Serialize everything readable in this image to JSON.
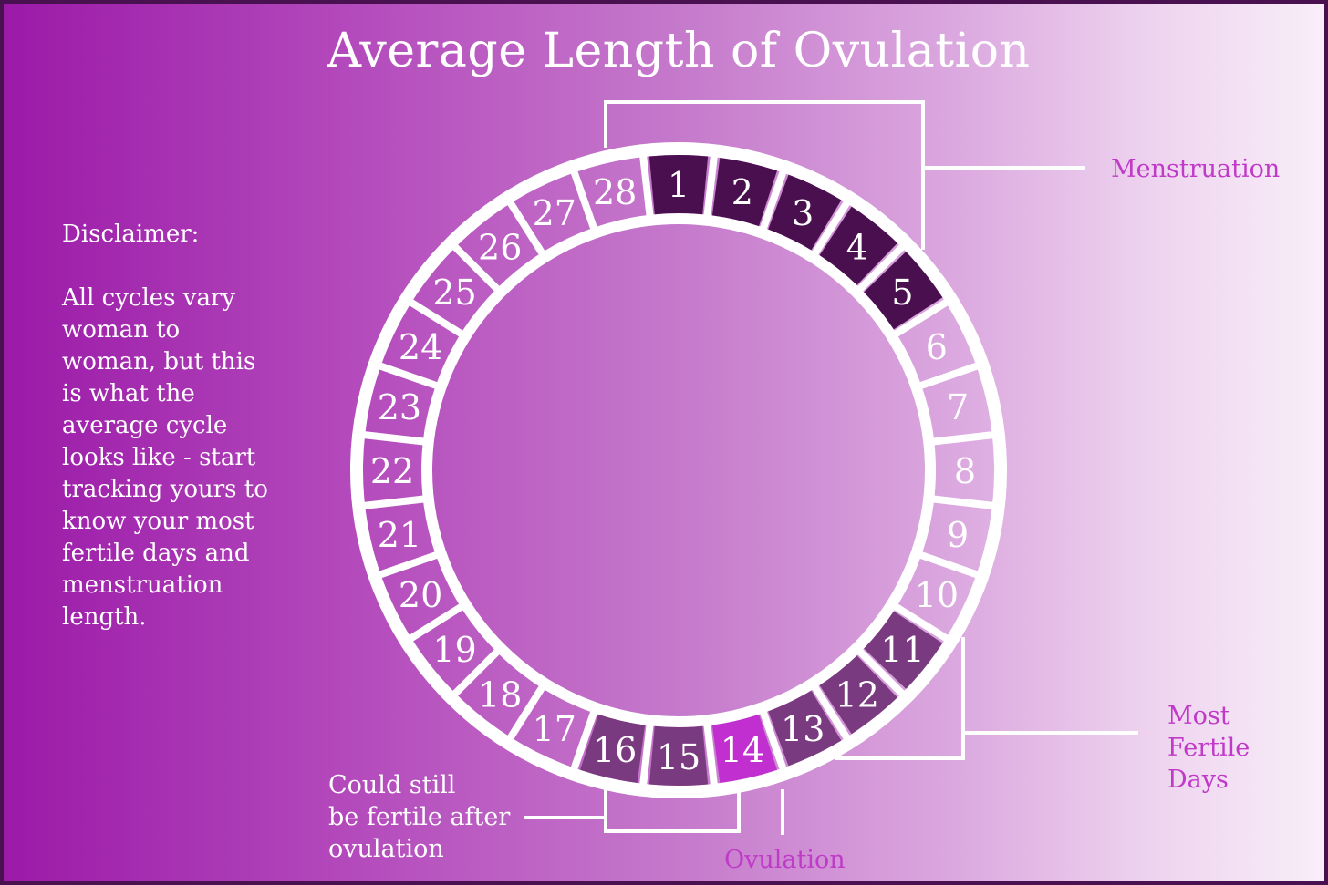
{
  "title": "Average Length of Ovulation",
  "disclaimer": {
    "heading": "Disclaimer:",
    "lines": [
      "All cycles vary",
      "woman to",
      "woman, but this",
      "is what the",
      "average cycle",
      "looks like - start",
      "tracking yours to",
      "know your most",
      "fertile days and",
      "menstruation",
      "length."
    ]
  },
  "cycle": {
    "days": [
      "1",
      "2",
      "3",
      "4",
      "5",
      "6",
      "7",
      "8",
      "9",
      "10",
      "11",
      "12",
      "13",
      "14",
      "15",
      "16",
      "17",
      "18",
      "19",
      "20",
      "21",
      "22",
      "23",
      "24",
      "25",
      "26",
      "27",
      "28"
    ],
    "menstruation_days": [
      1,
      2,
      3,
      4,
      5
    ],
    "fertile_days": [
      11,
      12,
      13,
      15,
      16
    ],
    "ovulation_day": 14
  },
  "labels": {
    "menstruation": "Menstruation",
    "most_fertile": [
      "Most",
      "Fertile",
      "Days"
    ],
    "ovulation": "Ovulation",
    "post_ovulation": [
      "Could still",
      "be fertile after",
      "ovulation"
    ]
  },
  "colors": {
    "menstruation": "#4a0f4f",
    "fertile": "#7a3a80",
    "ovulation": "#c12fd0",
    "accent_text": "#c03ac8"
  }
}
